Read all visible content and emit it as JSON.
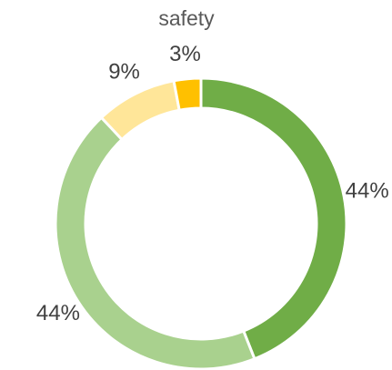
{
  "chart_data": {
    "type": "donut",
    "title": "safety",
    "values": [
      44,
      44,
      9,
      3
    ],
    "value_labels": [
      "44%",
      "44%",
      "9%",
      "3%"
    ],
    "colors": [
      "#70ad47",
      "#a9d18e",
      "#ffe699",
      "#ffc000"
    ]
  }
}
